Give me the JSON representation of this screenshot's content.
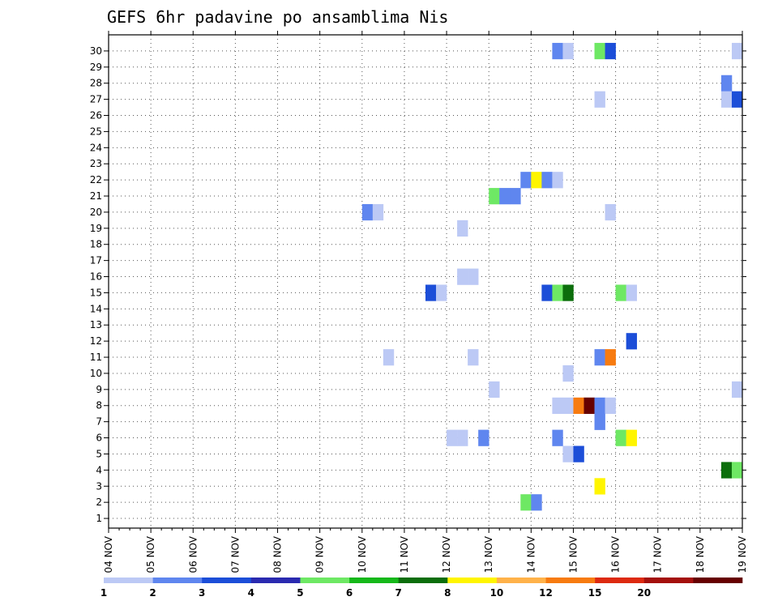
{
  "chart_data": {
    "type": "heatmap",
    "title": "GEFS 6hr padavine po ansamblima Nis",
    "xlabel": "",
    "ylabel": "",
    "grid": true,
    "y_members": [
      1,
      2,
      3,
      4,
      5,
      6,
      7,
      8,
      9,
      10,
      11,
      12,
      13,
      14,
      15,
      16,
      17,
      18,
      19,
      20,
      21,
      22,
      23,
      24,
      25,
      26,
      27,
      28,
      29,
      30
    ],
    "x_tick_labels": [
      "04 NOV",
      "05 NOV",
      "06 NOV",
      "07 NOV",
      "08 NOV",
      "09 NOV",
      "10 NOV",
      "11 NOV",
      "12 NOV",
      "13 NOV",
      "14 NOV",
      "15 NOV",
      "16 NOV",
      "17 NOV",
      "18 NOV",
      "19 NOV"
    ],
    "x_range_days": [
      0,
      15
    ],
    "steps_per_day": 4,
    "colorbar": {
      "levels": [
        "1",
        "2",
        "3",
        "4",
        "5",
        "6",
        "7",
        "8",
        "10",
        "12",
        "15",
        "20"
      ],
      "colors": [
        "#bcc9f5",
        "#5f86ef",
        "#1c4ed8",
        "#2a2ab0",
        "#6ee864",
        "#16b81a",
        "#0c6e0c",
        "#fff500",
        "#ffb24a",
        "#f77b10",
        "#dd2a10",
        "#a4100c",
        "#660000"
      ]
    },
    "cells": [
      {
        "member": 30,
        "step": 42,
        "level": 2
      },
      {
        "member": 30,
        "step": 43,
        "level": 1
      },
      {
        "member": 30,
        "step": 46,
        "level": 5
      },
      {
        "member": 30,
        "step": 47,
        "level": 3
      },
      {
        "member": 30,
        "step": 59,
        "level": 1
      },
      {
        "member": 28,
        "step": 58,
        "level": 2
      },
      {
        "member": 27,
        "step": 46,
        "level": 1
      },
      {
        "member": 27,
        "step": 58,
        "level": 1
      },
      {
        "member": 27,
        "step": 59,
        "level": 3
      },
      {
        "member": 22,
        "step": 39,
        "level": 2
      },
      {
        "member": 22,
        "step": 40,
        "level": 8
      },
      {
        "member": 22,
        "step": 41,
        "level": 2
      },
      {
        "member": 22,
        "step": 42,
        "level": 1
      },
      {
        "member": 21,
        "step": 36,
        "level": 5
      },
      {
        "member": 21,
        "step": 37,
        "level": 2
      },
      {
        "member": 21,
        "step": 38,
        "level": 2
      },
      {
        "member": 20,
        "step": 24,
        "level": 2
      },
      {
        "member": 20,
        "step": 25,
        "level": 1
      },
      {
        "member": 20,
        "step": 47,
        "level": 1
      },
      {
        "member": 19,
        "step": 33,
        "level": 1
      },
      {
        "member": 16,
        "step": 33,
        "level": 1
      },
      {
        "member": 16,
        "step": 34,
        "level": 1
      },
      {
        "member": 15,
        "step": 30,
        "level": 3
      },
      {
        "member": 15,
        "step": 31,
        "level": 1
      },
      {
        "member": 15,
        "step": 41,
        "level": 3
      },
      {
        "member": 15,
        "step": 42,
        "level": 5
      },
      {
        "member": 15,
        "step": 43,
        "level": 7
      },
      {
        "member": 15,
        "step": 48,
        "level": 5
      },
      {
        "member": 15,
        "step": 49,
        "level": 1
      },
      {
        "member": 12,
        "step": 49,
        "level": 3
      },
      {
        "member": 11,
        "step": 26,
        "level": 1
      },
      {
        "member": 11,
        "step": 34,
        "level": 1
      },
      {
        "member": 11,
        "step": 46,
        "level": 2
      },
      {
        "member": 11,
        "step": 47,
        "level": 10
      },
      {
        "member": 10,
        "step": 43,
        "level": 1
      },
      {
        "member": 9,
        "step": 36,
        "level": 1
      },
      {
        "member": 9,
        "step": 59,
        "level": 1
      },
      {
        "member": 8,
        "step": 42,
        "level": 1
      },
      {
        "member": 8,
        "step": 43,
        "level": 1
      },
      {
        "member": 8,
        "step": 44,
        "level": 10
      },
      {
        "member": 8,
        "step": 45,
        "level": 13
      },
      {
        "member": 8,
        "step": 46,
        "level": 2
      },
      {
        "member": 8,
        "step": 47,
        "level": 1
      },
      {
        "member": 7,
        "step": 46,
        "level": 2
      },
      {
        "member": 6,
        "step": 32,
        "level": 1
      },
      {
        "member": 6,
        "step": 33,
        "level": 1
      },
      {
        "member": 6,
        "step": 35,
        "level": 2
      },
      {
        "member": 6,
        "step": 42,
        "level": 2
      },
      {
        "member": 6,
        "step": 48,
        "level": 5
      },
      {
        "member": 6,
        "step": 49,
        "level": 8
      },
      {
        "member": 5,
        "step": 43,
        "level": 1
      },
      {
        "member": 5,
        "step": 44,
        "level": 3
      },
      {
        "member": 4,
        "step": 58,
        "level": 7
      },
      {
        "member": 4,
        "step": 59,
        "level": 5
      },
      {
        "member": 3,
        "step": 46,
        "level": 8
      },
      {
        "member": 2,
        "step": 39,
        "level": 5
      },
      {
        "member": 2,
        "step": 40,
        "level": 2
      }
    ]
  }
}
